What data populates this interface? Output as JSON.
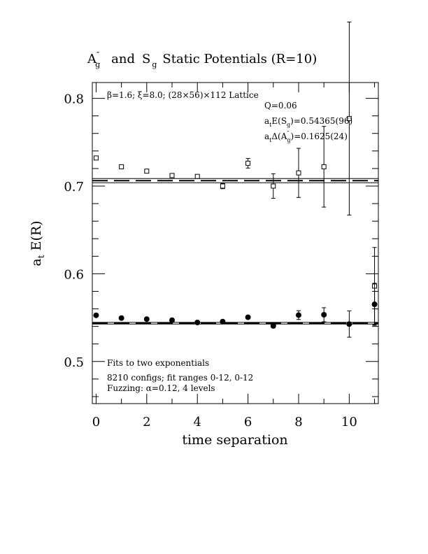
{
  "chart_data": {
    "type": "scatter",
    "title": "A″ᵧ and Sᵧ Static Potentials (R=10)",
    "title_parts": {
      "a_base": "A",
      "a_sup": "″",
      "a_sub": "g",
      "and": "and",
      "s_base": "S",
      "s_sub": "g",
      "rest": "Static Potentials (R=10)"
    },
    "xlabel": "time separation",
    "ylabel_parts": {
      "base": "a",
      "sub": "t",
      "rest": "E(R)"
    },
    "xlim": [
      -0.15,
      11.15
    ],
    "ylim": [
      0.452,
      0.818
    ],
    "x_ticks": [
      0,
      2,
      4,
      6,
      8,
      10
    ],
    "x_tick_labels": [
      "0",
      "2",
      "4",
      "6",
      "8",
      "10"
    ],
    "y_ticks": [
      0.5,
      0.6,
      0.7,
      0.8
    ],
    "y_tick_labels": [
      "0.5",
      "0.6",
      "0.7",
      "0.8"
    ],
    "x_minor_step": 1,
    "y_minor_step": 0.02,
    "grid": false,
    "annotations": {
      "lattice": "β=1.6; ξ=8.0; (28×56)×112 Lattice",
      "q": "Q=0.06",
      "energy_prefix": "a",
      "energy_sub": "t",
      "energy_mid": "E(S",
      "energy_sub2": "g",
      "energy_value": ")=0.54365(96)",
      "delta_prefix": "a",
      "delta_sub": "t",
      "delta_mid": "Δ(A",
      "delta_sup": "″",
      "delta_sub2": "g",
      "delta_value": ")=0.1625(24)",
      "fits": "Fits to two exponentials",
      "configs": "8210 configs; fit ranges 0-12, 0-12",
      "fuzzing": "Fuzzing: α=0.12, 4 levels"
    },
    "series": [
      {
        "marker": "open-square",
        "x": [
          0,
          1,
          2,
          3,
          4,
          5,
          6,
          7,
          8,
          9,
          10,
          11
        ],
        "y": [
          0.732,
          0.722,
          0.717,
          0.712,
          0.711,
          0.7,
          0.726,
          0.7,
          0.715,
          0.722,
          0.777,
          0.586
        ],
        "err": [
          0.0015,
          0.0015,
          0.0015,
          0.0015,
          0.002,
          0.003,
          0.0055,
          0.014,
          0.028,
          0.046,
          0.11,
          0.044
        ]
      },
      {
        "marker": "filled-circle",
        "x": [
          0,
          1,
          2,
          3,
          4,
          5,
          6,
          7,
          8,
          9,
          10,
          11
        ],
        "y": [
          0.5527,
          0.5495,
          0.5483,
          0.5471,
          0.5445,
          0.5455,
          0.5504,
          0.5406,
          0.5529,
          0.5533,
          0.5427,
          0.5652
        ],
        "err": [
          0.0008,
          0.0008,
          0.0008,
          0.0008,
          0.0008,
          0.0009,
          0.0012,
          0.0022,
          0.005,
          0.008,
          0.015,
          0.024
        ]
      }
    ],
    "fit_bands": [
      {
        "center": 0.70615,
        "half_width": 0.0024
      },
      {
        "center": 0.54365,
        "half_width": 0.00096
      }
    ]
  }
}
